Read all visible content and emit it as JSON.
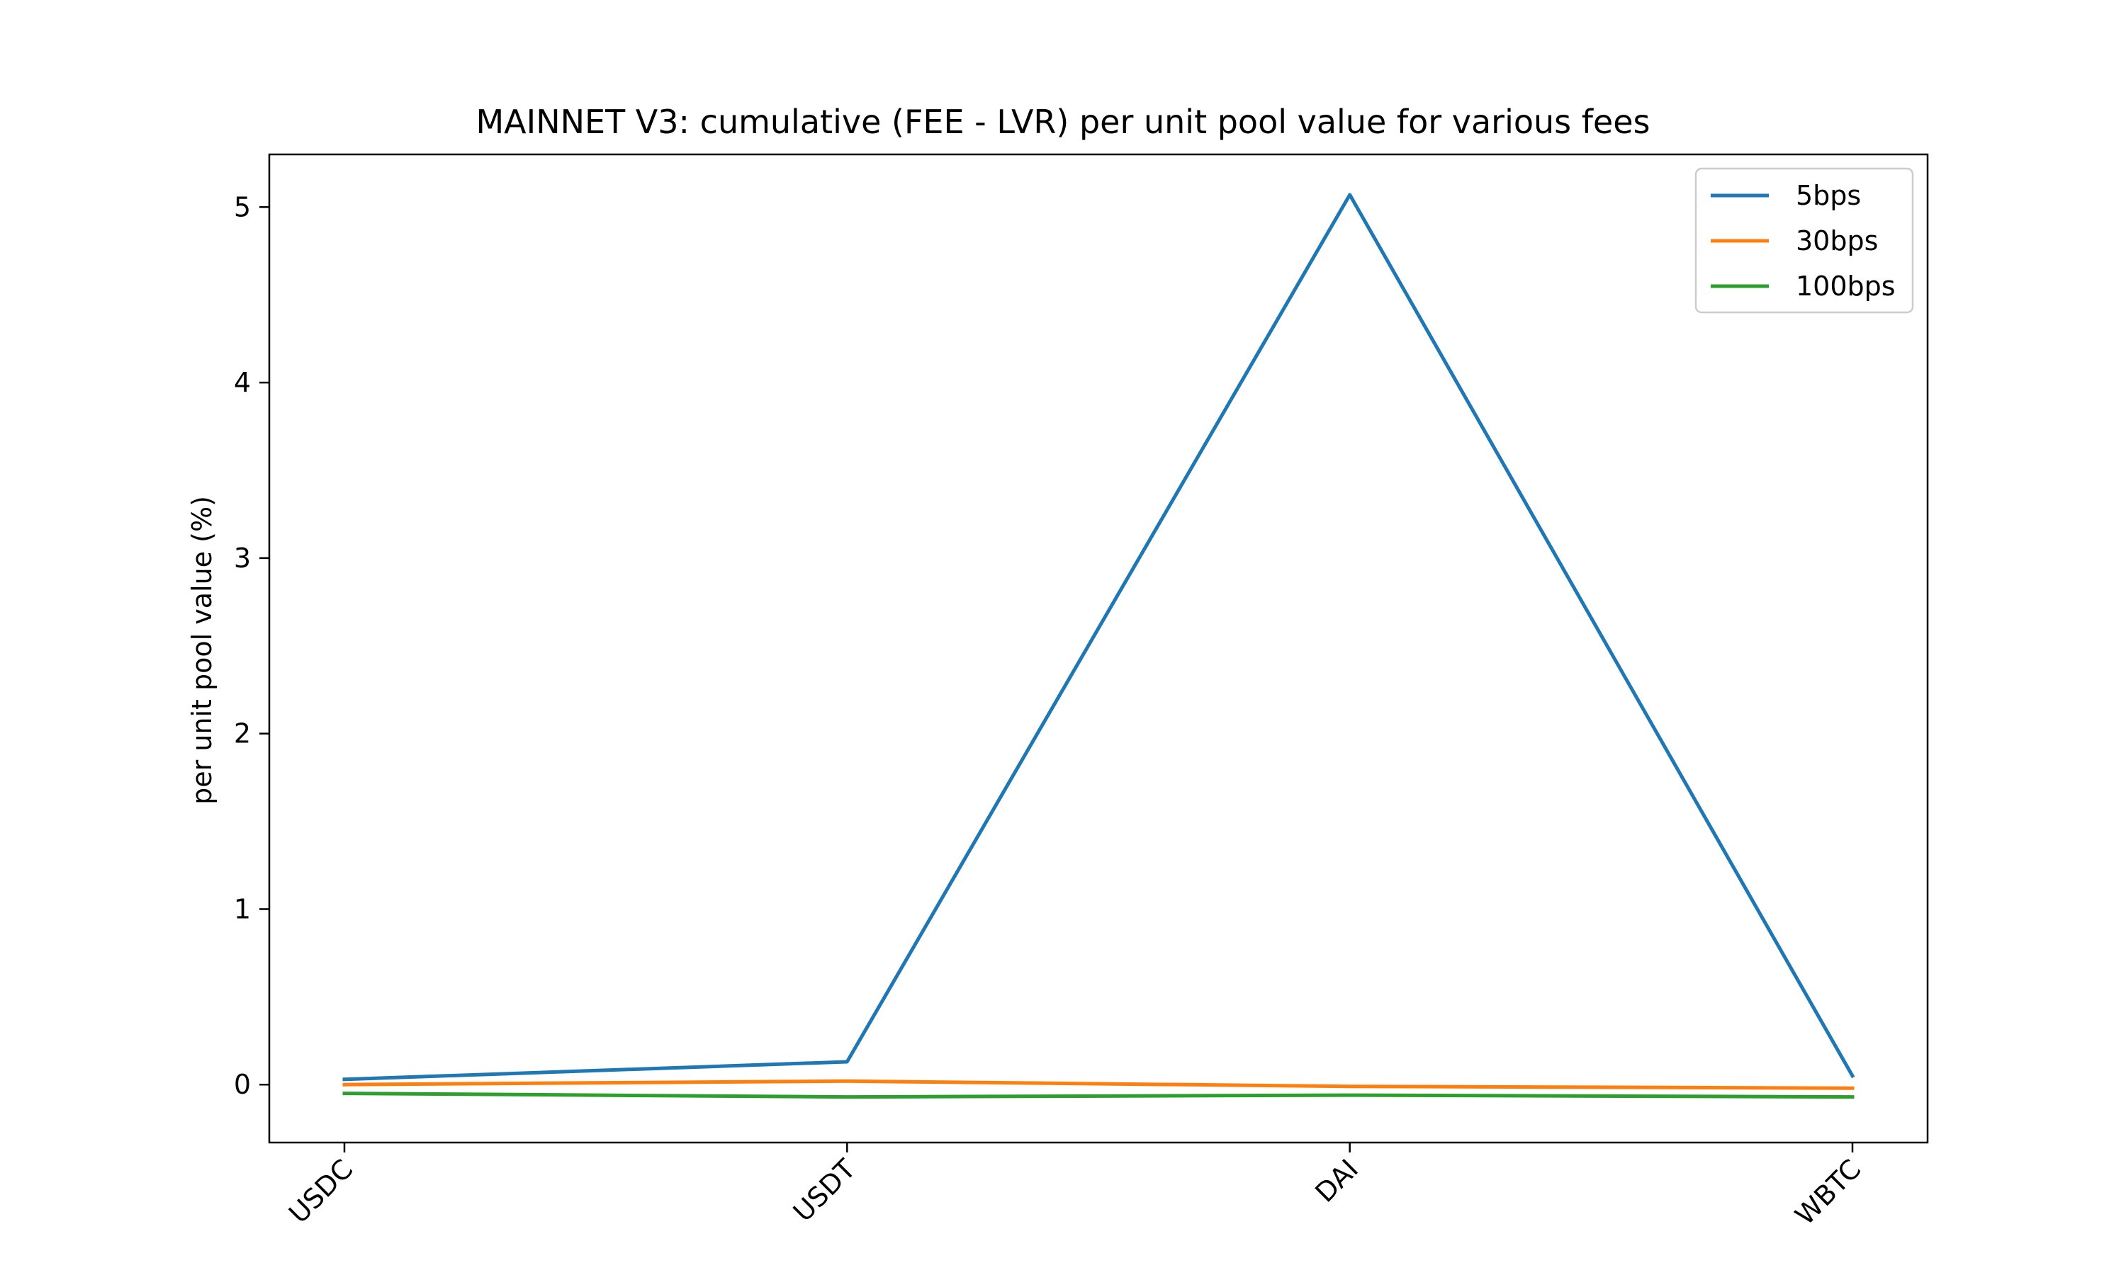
{
  "chart_data": {
    "type": "line",
    "title": "MAINNET V3: cumulative (FEE - LVR) per unit pool value for various fees",
    "xlabel": "",
    "ylabel": "per unit pool value (%)",
    "categories": [
      "USDC",
      "USDT",
      "DAI",
      "WBTC"
    ],
    "yticks": [
      0,
      1,
      2,
      3,
      4,
      5
    ],
    "ylim": [
      -0.33,
      5.3
    ],
    "grid": false,
    "legend_position": "top-right",
    "series": [
      {
        "name": "5bps",
        "color": "#1f77b4",
        "values": [
          0.03,
          0.13,
          5.07,
          0.05
        ]
      },
      {
        "name": "30bps",
        "color": "#ff7f0e",
        "values": [
          0.0,
          0.02,
          -0.01,
          -0.02
        ]
      },
      {
        "name": "100bps",
        "color": "#2ca02c",
        "values": [
          -0.05,
          -0.07,
          -0.06,
          -0.07
        ]
      }
    ]
  }
}
